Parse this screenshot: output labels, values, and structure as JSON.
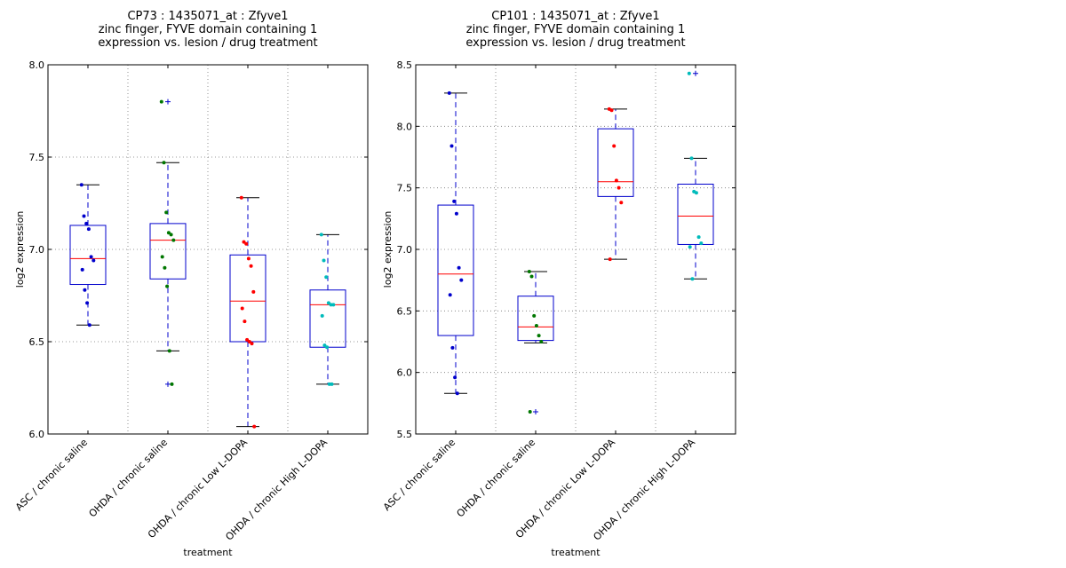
{
  "chart_data": [
    {
      "type": "box",
      "title_lines": [
        "CP73 : 1435071_at : Zfyve1",
        "zinc finger, FYVE domain containing 1",
        "expression vs. lesion / drug treatment"
      ],
      "xlabel": "treatment",
      "ylabel": "log2 expression",
      "ylim": [
        6.0,
        8.0
      ],
      "yticks": [
        6.0,
        6.5,
        7.0,
        7.5,
        8.0
      ],
      "ytick_labels": [
        "6.0",
        "6.5",
        "7.0",
        "7.5",
        "8.0"
      ],
      "grid": true,
      "categories": [
        "ASC / chronic saline",
        "OHDA / chronic saline",
        "OHDA / chronic Low L-DOPA",
        "OHDA / chronic High L-DOPA"
      ],
      "groups": [
        {
          "color": "#0000cc",
          "box": {
            "q1": 6.81,
            "median": 6.95,
            "q3": 7.13,
            "whisker_low": 6.59,
            "whisker_high": 7.35
          },
          "outliers": [],
          "points": [
            7.35,
            7.18,
            7.14,
            7.11,
            6.96,
            6.94,
            6.89,
            6.78,
            6.71,
            6.59
          ]
        },
        {
          "color": "#007700",
          "box": {
            "q1": 6.84,
            "median": 7.05,
            "q3": 7.14,
            "whisker_low": 6.45,
            "whisker_high": 7.47
          },
          "outliers": [
            7.8,
            6.27
          ],
          "points": [
            7.8,
            7.47,
            7.2,
            7.09,
            7.08,
            7.05,
            6.96,
            6.9,
            6.8,
            6.45,
            6.27
          ]
        },
        {
          "color": "#ff0000",
          "box": {
            "q1": 6.5,
            "median": 6.72,
            "q3": 6.97,
            "whisker_low": 6.04,
            "whisker_high": 7.28
          },
          "outliers": [],
          "points": [
            7.28,
            7.04,
            7.03,
            6.95,
            6.91,
            6.77,
            6.68,
            6.61,
            6.51,
            6.5,
            6.49,
            6.04
          ]
        },
        {
          "color": "#00bbbb",
          "box": {
            "q1": 6.47,
            "median": 6.7,
            "q3": 6.78,
            "whisker_low": 6.27,
            "whisker_high": 7.08
          },
          "outliers": [],
          "points": [
            7.08,
            6.94,
            6.85,
            6.71,
            6.7,
            6.7,
            6.64,
            6.48,
            6.47,
            6.27,
            6.27
          ]
        }
      ]
    },
    {
      "type": "box",
      "title_lines": [
        "CP101 : 1435071_at : Zfyve1",
        "zinc finger, FYVE domain containing 1",
        "expression vs. lesion / drug treatment"
      ],
      "xlabel": "treatment",
      "ylabel": "log2 expression",
      "ylim": [
        5.5,
        8.5
      ],
      "yticks": [
        5.5,
        6.0,
        6.5,
        7.0,
        7.5,
        8.0,
        8.5
      ],
      "ytick_labels": [
        "5.5",
        "6.0",
        "6.5",
        "7.0",
        "7.5",
        "8.0",
        "8.5"
      ],
      "grid": true,
      "categories": [
        "ASC / chronic saline",
        "OHDA / chronic saline",
        "OHDA / chronic Low L-DOPA",
        "OHDA / chronic High L-DOPA"
      ],
      "groups": [
        {
          "color": "#0000cc",
          "box": {
            "q1": 6.3,
            "median": 6.8,
            "q3": 7.36,
            "whisker_low": 5.83,
            "whisker_high": 8.27
          },
          "outliers": [],
          "points": [
            8.27,
            7.84,
            7.39,
            7.29,
            6.85,
            6.75,
            6.63,
            6.2,
            5.96,
            5.83
          ]
        },
        {
          "color": "#007700",
          "box": {
            "q1": 6.26,
            "median": 6.37,
            "q3": 6.62,
            "whisker_low": 6.24,
            "whisker_high": 6.82
          },
          "outliers": [
            5.68
          ],
          "points": [
            6.82,
            6.78,
            6.46,
            6.38,
            6.3,
            6.25,
            5.68
          ]
        },
        {
          "color": "#ff0000",
          "box": {
            "q1": 7.43,
            "median": 7.55,
            "q3": 7.98,
            "whisker_low": 6.92,
            "whisker_high": 8.14
          },
          "outliers": [],
          "points": [
            8.14,
            8.13,
            7.84,
            7.56,
            7.5,
            7.38,
            6.92
          ]
        },
        {
          "color": "#00bbbb",
          "box": {
            "q1": 7.04,
            "median": 7.27,
            "q3": 7.53,
            "whisker_low": 6.76,
            "whisker_high": 7.74
          },
          "outliers": [
            8.43
          ],
          "points": [
            8.43,
            7.74,
            7.47,
            7.46,
            7.1,
            7.05,
            7.02,
            6.76
          ]
        }
      ]
    }
  ]
}
